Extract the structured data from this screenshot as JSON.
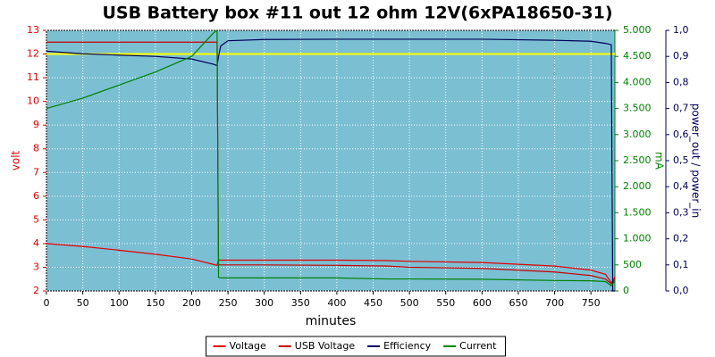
{
  "chart_data": {
    "type": "line",
    "title": "USB Battery box #11 out 12 ohm 12V(6xPA18650-31)",
    "xlabel": "minutes",
    "ylabel": "volt",
    "y2label": "mA",
    "y3label": "power_out / power_in",
    "x": [
      0,
      50,
      100,
      150,
      200,
      230,
      235,
      237,
      240,
      250,
      300,
      400,
      470,
      500,
      600,
      700,
      750,
      770,
      778,
      780,
      783
    ],
    "series": [
      {
        "name": "Voltage",
        "color": "#e00000",
        "axis": "y",
        "values": [
          4.0,
          3.88,
          3.72,
          3.55,
          3.35,
          3.12,
          3.08,
          3.3,
          3.3,
          3.3,
          3.3,
          3.3,
          3.28,
          3.25,
          3.2,
          3.05,
          2.88,
          2.7,
          2.35,
          2.4,
          2.6
        ]
      },
      {
        "name": "USB Voltage",
        "color": "#c80000",
        "axis": "y",
        "values": [
          12.5,
          12.5,
          12.5,
          12.5,
          12.5,
          12.5,
          12.5,
          3.1,
          3.1,
          3.1,
          3.1,
          3.08,
          3.05,
          3.0,
          2.95,
          2.8,
          2.65,
          2.5,
          2.3,
          2.35,
          2.55
        ]
      },
      {
        "name": "Efficiency",
        "color": "#00005a",
        "axis": "y3",
        "values": [
          0.92,
          0.91,
          0.905,
          0.9,
          0.89,
          0.87,
          0.865,
          0.9,
          0.94,
          0.96,
          0.965,
          0.966,
          0.966,
          0.966,
          0.966,
          0.962,
          0.958,
          0.95,
          0.945,
          0.0,
          0.0
        ]
      },
      {
        "name": "Current",
        "color": "#008000",
        "axis": "y2",
        "values": [
          3500,
          3700,
          3950,
          4200,
          4500,
          4950,
          5000,
          260,
          250,
          250,
          250,
          250,
          230,
          230,
          225,
          200,
          195,
          180,
          100,
          130,
          200
        ]
      }
    ],
    "reference_line": 12,
    "reference_color": "#ffff00",
    "xlim": [
      0,
      783
    ],
    "xticks": [
      0,
      50,
      100,
      150,
      200,
      250,
      300,
      350,
      400,
      450,
      500,
      550,
      600,
      650,
      700,
      750
    ],
    "ylim": [
      2,
      13
    ],
    "yticks": [
      2,
      3,
      4,
      5,
      6,
      7,
      8,
      9,
      10,
      11,
      12,
      13
    ],
    "y2lim": [
      0,
      5000
    ],
    "y2ticks": [
      0,
      500,
      {
        "value": 1000,
        "label": "1.000"
      },
      {
        "value": 1500,
        "label": "1.500"
      },
      {
        "value": 2000,
        "label": "2.000"
      },
      {
        "value": 2500,
        "label": "2.500"
      },
      {
        "value": 3000,
        "label": "3.000"
      },
      {
        "value": 3500,
        "label": "3.500"
      },
      {
        "value": 4000,
        "label": "4.000"
      },
      {
        "value": 4500,
        "label": "4.500"
      },
      {
        "value": 5000,
        "label": "5.000"
      }
    ],
    "y3lim": [
      0,
      1
    ],
    "y3ticks": [
      {
        "value": 0,
        "label": "0,0"
      },
      {
        "value": 0.1,
        "label": "0,1"
      },
      {
        "value": 0.2,
        "label": "0,2"
      },
      {
        "value": 0.3,
        "label": "0,3"
      },
      {
        "value": 0.4,
        "label": "0,4"
      },
      {
        "value": 0.5,
        "label": "0,5"
      },
      {
        "value": 0.6,
        "label": "0,6"
      },
      {
        "value": 0.7,
        "label": "0,7"
      },
      {
        "value": 0.8,
        "label": "0,8"
      },
      {
        "value": 0.9,
        "label": "0,9"
      },
      {
        "value": 1,
        "label": "1,0"
      }
    ],
    "grid": true,
    "legend": "bottom",
    "background": "#7bbfd3"
  }
}
